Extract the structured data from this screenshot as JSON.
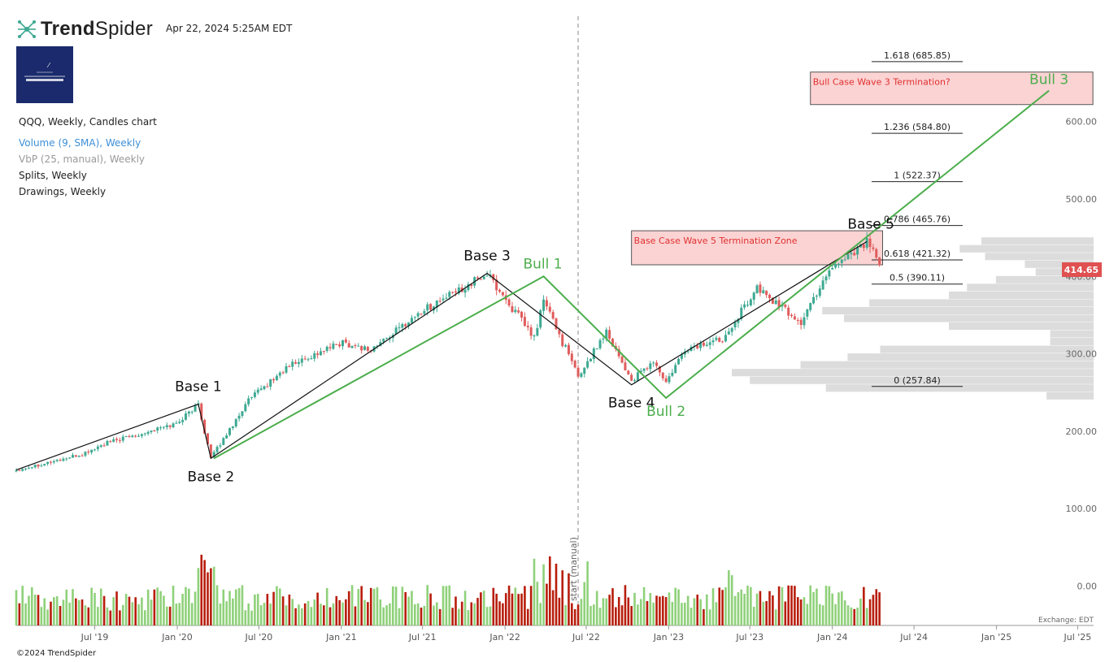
{
  "header": {
    "brand_bold": "Trend",
    "brand_regular": "Spider",
    "datetime": "Apr 22, 2024 5:25AM EDT"
  },
  "legend": {
    "main": "QQQ, Weekly, Candles chart",
    "volume": "Volume (9, SMA), Weekly",
    "vbp": "VbP (25, manual), Weekly",
    "splits": "Splits, Weekly",
    "drawings": "Drawings, Weekly"
  },
  "footer": {
    "copyright": "©2024 TrendSpider",
    "exchange": "Exchange: EDT",
    "vertical_marker": "start (manual)"
  },
  "colors": {
    "up": "#3ea992",
    "down": "#e05c5c",
    "vol_up": "#8fd17a",
    "vol_down": "#b81d0c",
    "fib_zone": "#fbd3d3",
    "zone_text": "#e03030",
    "bull_line": "#4cae4c",
    "vbp_bar": "#dcdcdc",
    "price_badge": "#e05050",
    "volume_legend": "#3d8fd6"
  },
  "chart_data": {
    "type": "candlestick",
    "symbol": "QQQ",
    "interval": "Weekly",
    "x_ticks": [
      "Jul '19",
      "Jan '20",
      "Jul '20",
      "Jan '21",
      "Jul '21",
      "Jan '22",
      "Jul '22",
      "Jan '23",
      "Jul '23",
      "Jan '24",
      "Jul '24",
      "Jan '25",
      "Jul '25"
    ],
    "y_ticks": [
      "600.00",
      "500.00",
      "400.00",
      "300.00",
      "200.00",
      "100.00",
      "0.00"
    ],
    "ylim": [
      0,
      685
    ],
    "last_price": "414.65",
    "anchors": [
      [
        "2019-01-07",
        150
      ],
      [
        "2019-06-03",
        170
      ],
      [
        "2019-07-29",
        185
      ],
      [
        "2019-12-30",
        210
      ],
      [
        "2020-02-17",
        235
      ],
      [
        "2020-03-16",
        165
      ],
      [
        "2020-06-08",
        240
      ],
      [
        "2020-09-07",
        285
      ],
      [
        "2021-01-04",
        315
      ],
      [
        "2021-03-08",
        305
      ],
      [
        "2021-06-28",
        355
      ],
      [
        "2021-11-22",
        403
      ],
      [
        "2022-03-07",
        320
      ],
      [
        "2022-03-28",
        370
      ],
      [
        "2022-06-13",
        270
      ],
      [
        "2022-08-15",
        330
      ],
      [
        "2022-10-10",
        265
      ],
      [
        "2022-11-28",
        290
      ],
      [
        "2022-12-26",
        262
      ],
      [
        "2023-02-06",
        305
      ],
      [
        "2023-05-01",
        320
      ],
      [
        "2023-07-17",
        385
      ],
      [
        "2023-10-23",
        340
      ],
      [
        "2023-12-25",
        410
      ],
      [
        "2024-03-18",
        445
      ],
      [
        "2024-04-15",
        414.65
      ]
    ],
    "fib_levels": [
      {
        "label": "1.618 (685.85)",
        "value": 685.85
      },
      {
        "label": "1.236 (584.80)",
        "value": 584.8
      },
      {
        "label": "1 (522.37)",
        "value": 522.37
      },
      {
        "label": "0.786 (465.76)",
        "value": 465.76
      },
      {
        "label": "0.618 (421.32)",
        "value": 421.32
      },
      {
        "label": "0.5 (390.11)",
        "value": 390.11
      },
      {
        "label": "0 (257.84)",
        "value": 257.84
      }
    ],
    "zones": [
      {
        "label": "Bull Case Wave 3 Termination?",
        "y_top": 664,
        "y_bottom": 622,
        "x_start": "2023-11-13",
        "x_end": "2025-08-04"
      },
      {
        "label": "Base Case Wave 5 Termination Zone",
        "y_top": 459,
        "y_bottom": 415,
        "x_start": "2022-10-10",
        "x_end": "2024-04-22"
      }
    ],
    "base_wave": [
      {
        "label": "Base 1",
        "date": "2020-02-17",
        "value": 235
      },
      {
        "label": "Base 2",
        "date": "2020-03-16",
        "value": 165
      },
      {
        "label": "Base 3",
        "date": "2021-11-22",
        "value": 404
      },
      {
        "label": "Base 4",
        "date": "2022-10-10",
        "value": 260
      },
      {
        "label": "Base 5",
        "date": "2024-03-18",
        "value": 445
      }
    ],
    "base_start": {
      "date": "2019-01-07",
      "value": 150
    },
    "bull_wave": [
      {
        "label": "",
        "date": "2020-03-23",
        "value": 165
      },
      {
        "label": "Bull 1",
        "date": "2022-03-28",
        "value": 400
      },
      {
        "label": "Bull 2",
        "date": "2022-12-26",
        "value": 243
      },
      {
        "label": "Bull 3",
        "date": "2025-04-28",
        "value": 640
      }
    ],
    "vbp_rows": [
      {
        "price": 446,
        "fraction": 0.31
      },
      {
        "price": 436,
        "fraction": 0.37
      },
      {
        "price": 426,
        "fraction": 0.3
      },
      {
        "price": 416,
        "fraction": 0.19
      },
      {
        "price": 406,
        "fraction": 0.16
      },
      {
        "price": 396,
        "fraction": 0.27
      },
      {
        "price": 386,
        "fraction": 0.35
      },
      {
        "price": 376,
        "fraction": 0.4
      },
      {
        "price": 366,
        "fraction": 0.62
      },
      {
        "price": 356,
        "fraction": 0.75
      },
      {
        "price": 346,
        "fraction": 0.69
      },
      {
        "price": 336,
        "fraction": 0.4
      },
      {
        "price": 326,
        "fraction": 0.12
      },
      {
        "price": 316,
        "fraction": 0.12
      },
      {
        "price": 306,
        "fraction": 0.59
      },
      {
        "price": 296,
        "fraction": 0.68
      },
      {
        "price": 286,
        "fraction": 0.81
      },
      {
        "price": 276,
        "fraction": 1.0
      },
      {
        "price": 266,
        "fraction": 0.95
      },
      {
        "price": 256,
        "fraction": 0.74
      },
      {
        "price": 246,
        "fraction": 0.13
      }
    ],
    "volume_ylim": [
      0,
      1
    ]
  }
}
